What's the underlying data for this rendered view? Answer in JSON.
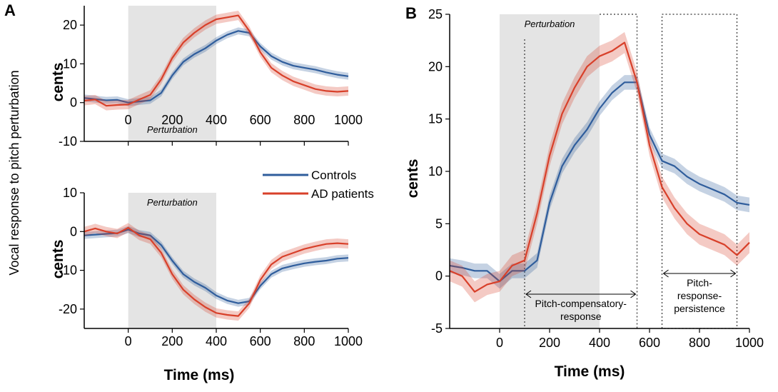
{
  "colors": {
    "controls": "#2f5d9c",
    "ad": "#d8402a",
    "perturbation_shade": "#e4e4e4"
  },
  "shared_ylabel": "Vocal response to pitch perturbation",
  "legend": {
    "placement": "between-left-panels",
    "entries": [
      "Controls",
      "AD patients"
    ]
  },
  "chart_data": [
    {
      "panel": "A",
      "type": "line",
      "xlabel": "",
      "ylabel": "cents",
      "xlim": [
        -200,
        1000
      ],
      "ylim": [
        -10,
        25
      ],
      "yticks": [
        -10,
        0,
        10,
        20
      ],
      "xticks": [
        0,
        200,
        400,
        600,
        800,
        1000
      ],
      "show_xtick_labels": true,
      "perturbation": {
        "start": 0,
        "end": 400,
        "label": "Perturbation",
        "label_position": "bottom"
      },
      "x": [
        -200,
        -150,
        -100,
        -50,
        0,
        50,
        100,
        150,
        200,
        250,
        300,
        350,
        400,
        450,
        500,
        550,
        600,
        650,
        700,
        750,
        800,
        850,
        900,
        950,
        1000
      ],
      "series": [
        {
          "name": "Controls",
          "color_key": "controls",
          "ci": 0.9,
          "values": [
            1.2,
            0.9,
            0.6,
            0.7,
            0.0,
            0.3,
            0.6,
            2.5,
            7.0,
            10.5,
            12.5,
            14.0,
            16.0,
            17.5,
            18.5,
            18.0,
            14.5,
            12.0,
            10.5,
            9.5,
            9.0,
            8.5,
            7.8,
            7.2,
            6.8
          ]
        },
        {
          "name": "AD patients",
          "color_key": "ad",
          "ci": 1.2,
          "values": [
            0.5,
            0.8,
            -0.8,
            -0.6,
            -0.5,
            0.8,
            2.0,
            6.0,
            11.5,
            15.5,
            18.0,
            20.0,
            21.5,
            22.0,
            22.5,
            18.5,
            13.0,
            9.0,
            7.0,
            5.5,
            4.5,
            3.5,
            3.0,
            2.8,
            3.0
          ]
        }
      ]
    },
    {
      "panel": "",
      "type": "line",
      "xlabel": "Time (ms)",
      "ylabel": "cents",
      "xlim": [
        -200,
        1000
      ],
      "ylim": [
        -25,
        10
      ],
      "yticks": [
        -20,
        -10,
        0,
        10
      ],
      "xticks": [
        0,
        200,
        400,
        600,
        800,
        1000
      ],
      "show_xtick_labels": true,
      "perturbation": {
        "start": 0,
        "end": 400,
        "label": "Perturbation",
        "label_position": "top"
      },
      "x": [
        -200,
        -150,
        -100,
        -50,
        0,
        50,
        100,
        150,
        200,
        250,
        300,
        350,
        400,
        450,
        500,
        550,
        600,
        650,
        700,
        750,
        800,
        850,
        900,
        950,
        1000
      ],
      "series": [
        {
          "name": "Controls",
          "color_key": "controls",
          "ci": 0.9,
          "values": [
            -1.0,
            -0.8,
            -0.6,
            -0.4,
            0.5,
            -0.5,
            -1.0,
            -3.5,
            -7.5,
            -11.0,
            -13.0,
            -14.5,
            -16.5,
            -17.8,
            -18.5,
            -18.0,
            -14.0,
            -11.0,
            -9.5,
            -8.8,
            -8.2,
            -7.8,
            -7.5,
            -7.0,
            -6.8
          ]
        },
        {
          "name": "AD patients",
          "color_key": "ad",
          "ci": 1.2,
          "values": [
            0.0,
            0.8,
            0.0,
            -0.5,
            1.0,
            -1.0,
            -2.0,
            -5.5,
            -11.0,
            -15.0,
            -17.5,
            -19.5,
            -21.0,
            -21.5,
            -21.8,
            -18.5,
            -12.5,
            -8.5,
            -6.5,
            -5.5,
            -4.5,
            -3.8,
            -3.2,
            -3.0,
            -3.2
          ]
        }
      ]
    },
    {
      "panel": "B",
      "type": "line",
      "xlabel": "Time (ms)",
      "ylabel": "cents",
      "xlim": [
        -200,
        1000
      ],
      "ylim": [
        -5,
        25
      ],
      "yticks": [
        -5,
        0,
        5,
        10,
        15,
        20,
        25
      ],
      "xticks": [
        0,
        200,
        400,
        600,
        800,
        1000
      ],
      "show_xtick_labels": true,
      "perturbation": {
        "start": 0,
        "end": 400,
        "label": "Perturbation",
        "label_position": "top"
      },
      "windows": [
        {
          "start": 100,
          "end": 550,
          "label": [
            "Pitch-compensatory-",
            "response"
          ]
        },
        {
          "start": 650,
          "end": 950,
          "label": [
            "Pitch-",
            "response-",
            "persistence"
          ]
        }
      ],
      "x": [
        -200,
        -150,
        -100,
        -50,
        0,
        50,
        100,
        150,
        200,
        250,
        300,
        350,
        400,
        450,
        500,
        550,
        600,
        650,
        700,
        750,
        800,
        850,
        900,
        950,
        1000
      ],
      "series": [
        {
          "name": "Controls",
          "color_key": "controls",
          "ci": 0.7,
          "values": [
            1.0,
            0.8,
            0.5,
            0.5,
            -0.5,
            0.5,
            0.5,
            1.5,
            7.0,
            10.5,
            12.5,
            14.0,
            16.0,
            17.5,
            18.5,
            18.5,
            13.5,
            11.0,
            10.5,
            9.5,
            8.8,
            8.3,
            7.8,
            7.0,
            6.8
          ]
        },
        {
          "name": "AD patients",
          "color_key": "ad",
          "ci": 1.0,
          "values": [
            0.5,
            0.0,
            -1.5,
            -0.8,
            -0.5,
            1.0,
            1.5,
            6.0,
            11.5,
            15.5,
            18.0,
            20.0,
            21.0,
            21.5,
            22.3,
            18.5,
            12.5,
            8.5,
            6.5,
            5.0,
            4.0,
            3.5,
            3.0,
            2.0,
            3.2
          ]
        }
      ]
    }
  ]
}
